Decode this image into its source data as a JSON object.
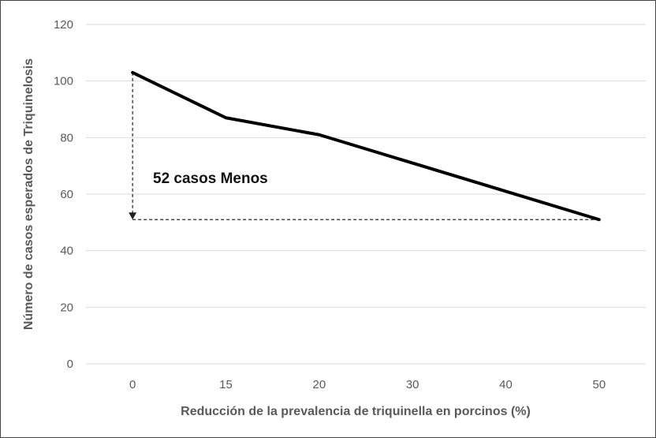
{
  "chart_data": {
    "type": "line",
    "categories": [
      "0",
      "15",
      "20",
      "30",
      "40",
      "50"
    ],
    "series": [
      {
        "values": [
          103,
          87,
          81,
          71,
          61,
          51
        ]
      }
    ],
    "xlabel": "Reducción de la prevalencia de triquinella en porcinos (%)",
    "ylabel": "Número de casos esperados de Triquinelosis",
    "ylim": [
      0,
      120
    ],
    "yticks": [
      0,
      20,
      40,
      60,
      80,
      100,
      120
    ],
    "grid": true,
    "legend": "none",
    "annotation": {
      "text": "52 casos Menos",
      "from_value": 103,
      "to_value": 51
    },
    "colors": {
      "line": "#000000",
      "grid": "#d9d9d9",
      "text": "#595959"
    }
  }
}
